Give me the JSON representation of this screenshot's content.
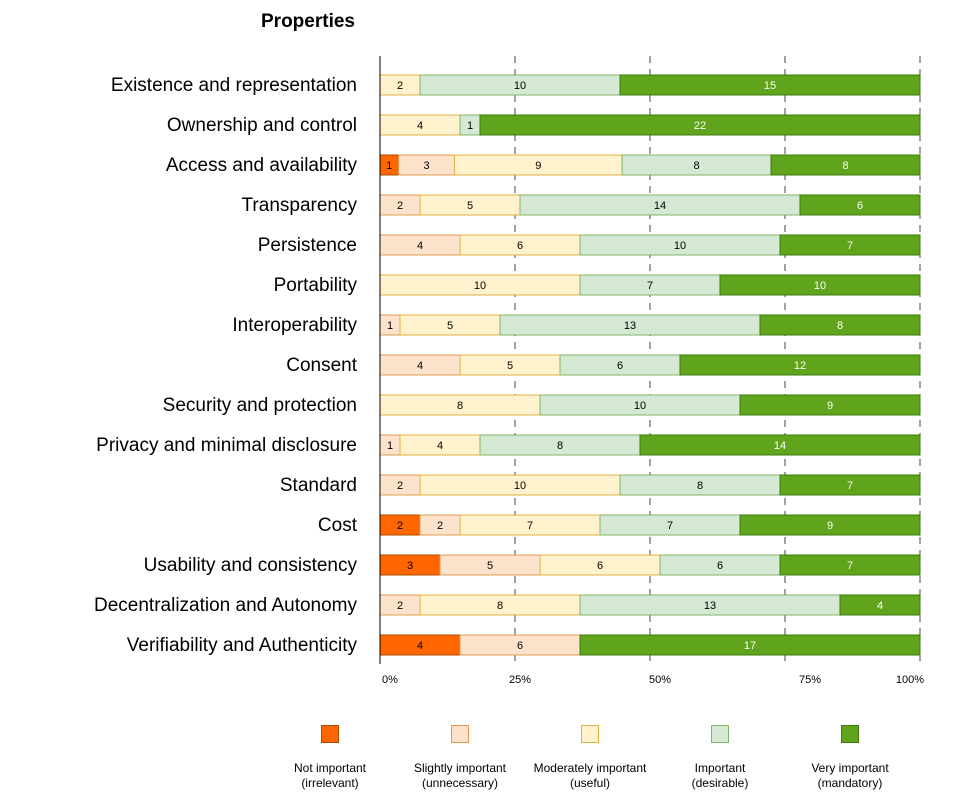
{
  "chart_data": {
    "type": "bar",
    "orientation": "horizontal",
    "stacked": "percent",
    "title": "Properties",
    "categories": [
      "Existence and representation",
      "Ownership and control",
      "Access and availability",
      "Transparency",
      "Persistence",
      "Portability",
      "Interoperability",
      "Consent",
      "Security and protection",
      "Privacy and minimal disclosure",
      "Standard",
      "Cost",
      "Usability and consistency",
      "Decentralization and Autonomy",
      "Verifiability and Authenticity"
    ],
    "series": [
      {
        "name": "Not important (irrelevant)",
        "color": "#ff6600",
        "border": "#b04a00",
        "text_color": "#000000",
        "values": [
          0,
          0,
          1,
          0,
          0,
          0,
          0,
          0,
          0,
          0,
          0,
          2,
          3,
          0,
          4
        ]
      },
      {
        "name": "Slightly important (unnecessary)",
        "color": "#fde3cc",
        "border": "#e09a50",
        "text_color": "#000000",
        "values": [
          0,
          0,
          3,
          2,
          4,
          0,
          1,
          4,
          0,
          1,
          2,
          2,
          5,
          2,
          6
        ]
      },
      {
        "name": "Moderately important (useful)",
        "color": "#fff2cc",
        "border": "#e0b040",
        "text_color": "#000000",
        "values": [
          2,
          4,
          9,
          5,
          6,
          10,
          5,
          5,
          8,
          4,
          10,
          7,
          6,
          8,
          0
        ]
      },
      {
        "name": "Important (desirable)",
        "color": "#d5e8d4",
        "border": "#82b366",
        "text_color": "#000000",
        "values": [
          10,
          1,
          8,
          14,
          10,
          7,
          13,
          6,
          10,
          8,
          8,
          7,
          6,
          13,
          0
        ]
      },
      {
        "name": "Very important (mandatory)",
        "color": "#5fa41c",
        "border": "#3d7a0c",
        "text_color": "#ffffff",
        "values": [
          15,
          22,
          8,
          6,
          7,
          10,
          8,
          12,
          9,
          14,
          7,
          9,
          7,
          4,
          17
        ]
      }
    ],
    "x_ticks": [
      "0%",
      "25%",
      "50%",
      "75%",
      "100%"
    ],
    "xlim": [
      0,
      100
    ],
    "grid": "dashed vertical at 25%, 50%, 75%, 100%",
    "legend_position": "bottom"
  },
  "legend": [
    {
      "line1": "Not important",
      "line2": "(irrelevant)",
      "color": "#ff6600",
      "border": "#b04a00"
    },
    {
      "line1": "Slightly important",
      "line2": "(unnecessary)",
      "color": "#fde3cc",
      "border": "#e09a50"
    },
    {
      "line1": "Moderately important",
      "line2": "(useful)",
      "color": "#fff2cc",
      "border": "#e0b040"
    },
    {
      "line1": "Important",
      "line2": "(desirable)",
      "color": "#d5e8d4",
      "border": "#82b366"
    },
    {
      "line1": "Very important",
      "line2": "(mandatory)",
      "color": "#5fa41c",
      "border": "#3d7a0c"
    }
  ]
}
